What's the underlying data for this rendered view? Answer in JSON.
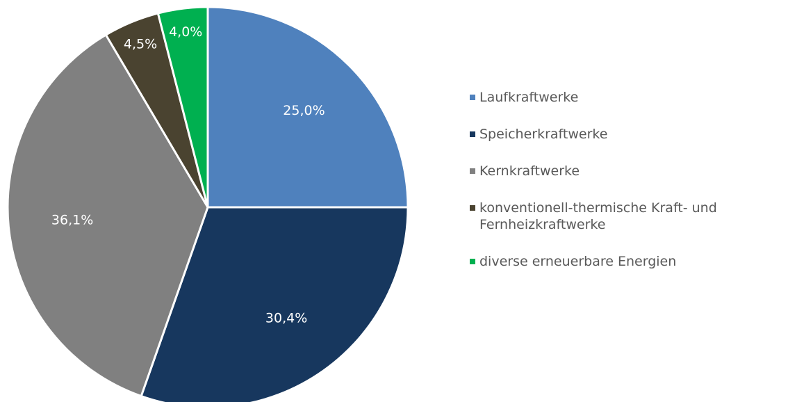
{
  "chart_data": {
    "type": "pie",
    "categories": [
      "Laufkraftwerke",
      "Speicherkraftwerke",
      "Kernkraftwerke",
      "konventionell-thermische Kraft- und Fernheizkraftwerke",
      "diverse erneuerbare Energien"
    ],
    "values": [
      25.0,
      30.4,
      36.1,
      4.5,
      4.0
    ],
    "value_labels": [
      "25,0%",
      "30,4%",
      "36,1%",
      "4,5%",
      "4,0%"
    ],
    "colors": [
      "#4f81bd",
      "#17375e",
      "#808080",
      "#4a4330",
      "#00b050"
    ],
    "legend": "right"
  }
}
